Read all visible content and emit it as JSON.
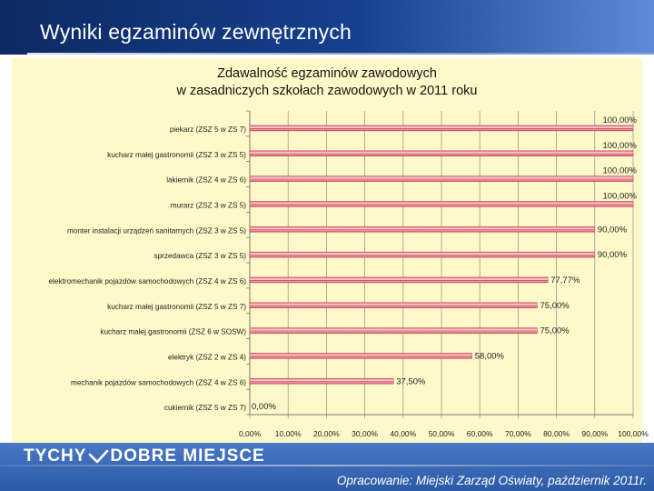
{
  "slide": {
    "title": "Wyniki egzaminów zewnętrznych",
    "brand_left": "TYCHY",
    "brand_right": "DOBRE MIEJSCE",
    "source": "Opracowanie: Miejski Zarząd Oświaty, październik 2011r."
  },
  "colors": {
    "header_dark": "#0d2a63",
    "chart_bg": "#fff9c9",
    "bar_fill": "#f2b0b6",
    "bar_stripe": "#c8334a",
    "footer": "#3a68b6"
  },
  "chart_data": {
    "type": "bar",
    "orientation": "horizontal",
    "title_line1": "Zdawalność egzaminów zawodowych",
    "title_line2": "w zasadniczych szkołach zawodowych w 2011 roku",
    "categories": [
      "piekarz (ZSZ 5 w ZS 7)",
      "kucharz małej gastronomii (ZSZ 3 w ZS 5)",
      "lakiernik (ZSZ 4 w ZS 6)",
      "murarz (ZSZ 3 w ZS 5)",
      "monter instalacji urządzeń sanitarnych (ZSZ 3 w ZS 5)",
      "sprzedawca (ZSZ 3 w ZS 5)",
      "elektromechanik pojazdów samochodowych (ZSZ 4 w ZS 6)",
      "kucharz małej gastronomii (ZSZ 5 w ZS 7)",
      "kucharz małej gastronomii (ZSZ 6 w SOSW)",
      "elektryk (ZSZ 2 w ZS 4)",
      "mechanik pojazdów samochodowych (ZSZ 4 w ZS 6)",
      "cukiernik (ZSZ 5 w ZS 7)"
    ],
    "values": [
      100,
      100,
      100,
      100,
      90,
      90,
      77.77,
      75,
      75,
      58,
      37.5,
      0
    ],
    "value_labels": [
      "100,00%",
      "100,00%",
      "100,00%",
      "100,00%",
      "90,00%",
      "90,00%",
      "77,77%",
      "75,00%",
      "75,00%",
      "58,00%",
      "37,50%",
      "0,00%"
    ],
    "xlim": [
      0,
      100
    ],
    "x_ticks": [
      "0,00%",
      "10,00%",
      "20,00%",
      "30,00%",
      "40,00%",
      "50,00%",
      "60,00%",
      "70,00%",
      "80,00%",
      "90,00%",
      "100,00%"
    ],
    "grid": true,
    "legend": "none"
  }
}
